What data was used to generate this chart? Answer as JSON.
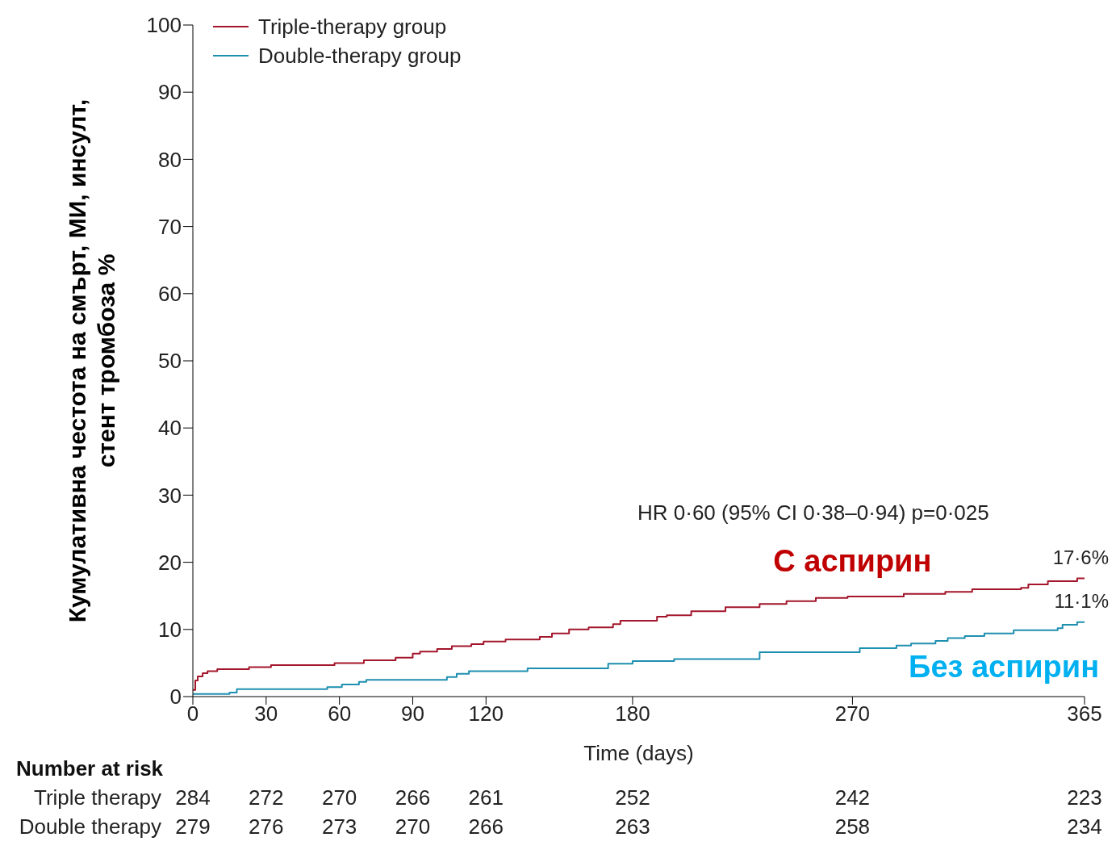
{
  "chart_data": {
    "type": "step",
    "ylabel": "Кумулативна честота на смърт, МИ, инсулт, стент тромбоза %",
    "xlabel": "Time (days)",
    "xlim": [
      0,
      365
    ],
    "xticks": [
      0,
      30,
      60,
      90,
      120,
      180,
      270,
      365
    ],
    "ylim": [
      0,
      100
    ],
    "yticks": [
      0,
      10,
      20,
      30,
      40,
      50,
      60,
      70,
      80,
      90,
      100
    ],
    "grid": false,
    "legend": "top left",
    "marker": "none",
    "line_style": "solid",
    "series": [
      {
        "name": "Triple-therapy group",
        "color": "#a3162b",
        "x": [
          0,
          1,
          2,
          4,
          6,
          10,
          23,
          32,
          58,
          70,
          83,
          90,
          93,
          100,
          106,
          114,
          119,
          128,
          142,
          147,
          154,
          162,
          172,
          175,
          190,
          194,
          204,
          218,
          232,
          243,
          255,
          268,
          291,
          308,
          319,
          339,
          342,
          350,
          362,
          365
        ],
        "values": [
          1.0,
          2.4,
          3.0,
          3.5,
          3.8,
          4.1,
          4.4,
          4.7,
          5.0,
          5.4,
          5.8,
          6.4,
          6.7,
          7.1,
          7.5,
          7.8,
          8.2,
          8.5,
          8.9,
          9.4,
          10.0,
          10.3,
          10.8,
          11.3,
          11.9,
          12.1,
          12.7,
          13.3,
          13.8,
          14.2,
          14.7,
          14.9,
          15.3,
          15.6,
          16.0,
          16.2,
          16.7,
          17.2,
          17.6,
          17.6
        ]
      },
      {
        "name": "Double-therapy group",
        "color": "#1f8fb0",
        "x": [
          0,
          15,
          18,
          55,
          61,
          68,
          71,
          104,
          108,
          113,
          137,
          170,
          180,
          197,
          232,
          273,
          288,
          294,
          304,
          309,
          316,
          324,
          336,
          354,
          356,
          362,
          365
        ],
        "values": [
          0.4,
          0.6,
          1.1,
          1.4,
          1.8,
          2.2,
          2.5,
          2.9,
          3.4,
          3.8,
          4.2,
          4.9,
          5.3,
          5.6,
          6.6,
          7.2,
          7.6,
          7.9,
          8.3,
          8.7,
          9.0,
          9.4,
          9.9,
          10.2,
          10.7,
          11.1,
          11.1
        ]
      }
    ],
    "annotations": [
      "HR 0·60 (95% CI 0·38–0·94) p=0·025",
      {
        "text": "17·6%",
        "x": 365,
        "y": 17.6
      },
      {
        "text": "11·1%",
        "x": 365,
        "y": 11.1
      },
      {
        "text": "С аспирин",
        "x": 270,
        "y": 14.9
      },
      {
        "text": "Без аспирин",
        "x": 332,
        "y": 9.4
      },
      "Number at risk",
      "Triple therapy 284 272 270 266 261 252 242 223",
      "Double therapy 279 276 273 270 266 263 258 234"
    ]
  }
}
